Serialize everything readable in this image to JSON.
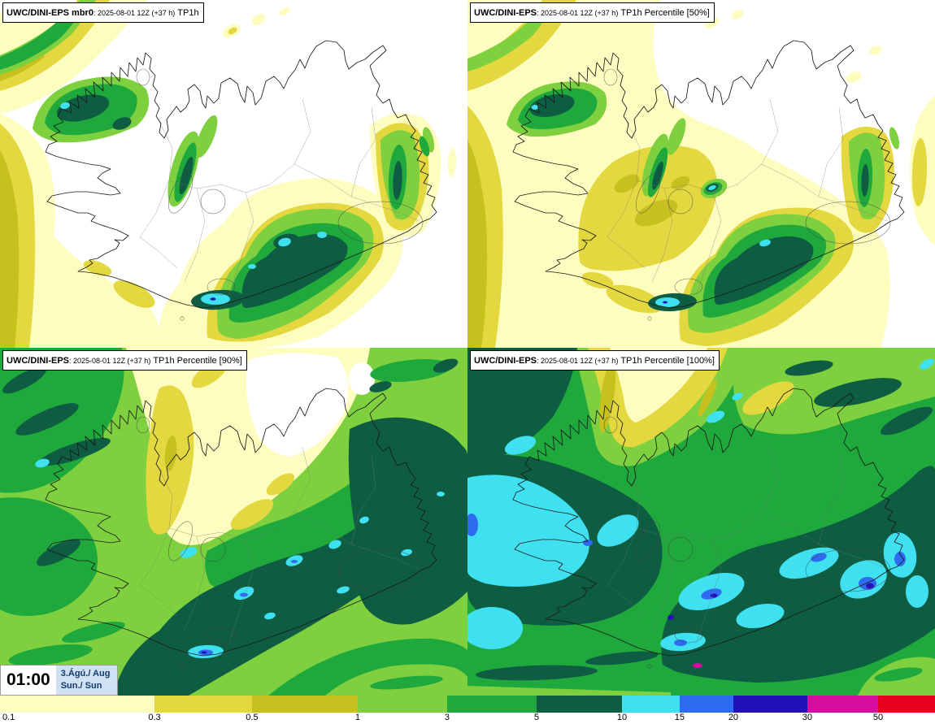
{
  "map": {
    "region": "Iceland"
  },
  "panels": [
    {
      "title_name": "UWC/DINI-EPS mbr0",
      "title_meta": ": 2025-08-01 12Z (+37 h)",
      "title_field": "TP1h"
    },
    {
      "title_name": "UWC/DINI-EPS",
      "title_meta": ": 2025-08-01 12Z (+37 h)",
      "title_field": "TP1h Percentile [50%]"
    },
    {
      "title_name": "UWC/DINI-EPS",
      "title_meta": ": 2025-08-01 12Z (+37 h)",
      "title_field": "TP1h Percentile [90%]"
    },
    {
      "title_name": "UWC/DINI-EPS",
      "title_meta": ": 2025-08-01 12Z (+37 h)",
      "title_field": "TP1h Percentile [100%]"
    }
  ],
  "time_label": {
    "time": "01:00",
    "date_line1": "3.Ágú./ Aug",
    "date_line2": "Sun./ Sun"
  },
  "colorbar": {
    "segments": [
      {
        "label": "0.1",
        "color": "#FEFDC0",
        "width": 16.52
      },
      {
        "label": "0.3",
        "color": "#E4D840",
        "width": 10.43
      },
      {
        "label": "0.5",
        "color": "#C6C11F",
        "width": 11.3
      },
      {
        "label": "1",
        "color": "#7ED03F",
        "width": 9.57
      },
      {
        "label": "3",
        "color": "#1FA83C",
        "width": 9.57
      },
      {
        "label": "5",
        "color": "#0E5C42",
        "width": 9.13
      },
      {
        "label": "10",
        "color": "#3FE1F0",
        "width": 6.17
      },
      {
        "label": "15",
        "color": "#2F6BF0",
        "width": 5.74
      },
      {
        "label": "20",
        "color": "#2410B8",
        "width": 7.91
      },
      {
        "label": "30",
        "color": "#D60C9E",
        "width": 7.57
      },
      {
        "label": "50",
        "color": "#E8001E",
        "width": 6.09
      }
    ]
  }
}
